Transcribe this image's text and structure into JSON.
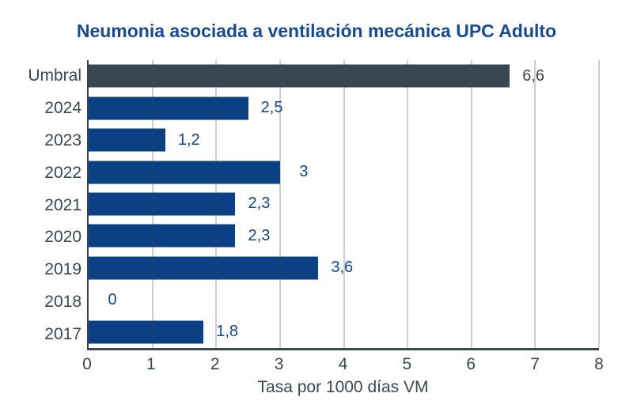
{
  "chart_data": {
    "type": "bar",
    "orientation": "horizontal",
    "title": "Neumonia asociada a ventilación mecánica UPC Adulto",
    "categories": [
      "Umbral",
      "2024",
      "2023",
      "2022",
      "2021",
      "2020",
      "2019",
      "2018",
      "2017"
    ],
    "values": [
      6.6,
      2.5,
      1.2,
      3,
      2.3,
      2.3,
      3.6,
      0,
      1.8
    ],
    "value_labels": [
      "6,6",
      "2,5",
      "1,2",
      "3",
      "2,3",
      "2,3",
      "3,6",
      "0",
      "1,8"
    ],
    "xlabel": "Tasa por 1000 días VM",
    "xlim": [
      0,
      8
    ],
    "xticks": [
      "0",
      "1",
      "2",
      "3",
      "4",
      "5",
      "6",
      "7",
      "8"
    ],
    "grid": true,
    "legend": false,
    "colors": {
      "title": "#174b8d",
      "bar_default": "#0a4183",
      "bar_umbral": "#3b4750",
      "value_label_default": "#11468a",
      "value_label_umbral": "#3b4750",
      "axis_text": "#3b4750",
      "axis_line": "#3b4750"
    }
  }
}
